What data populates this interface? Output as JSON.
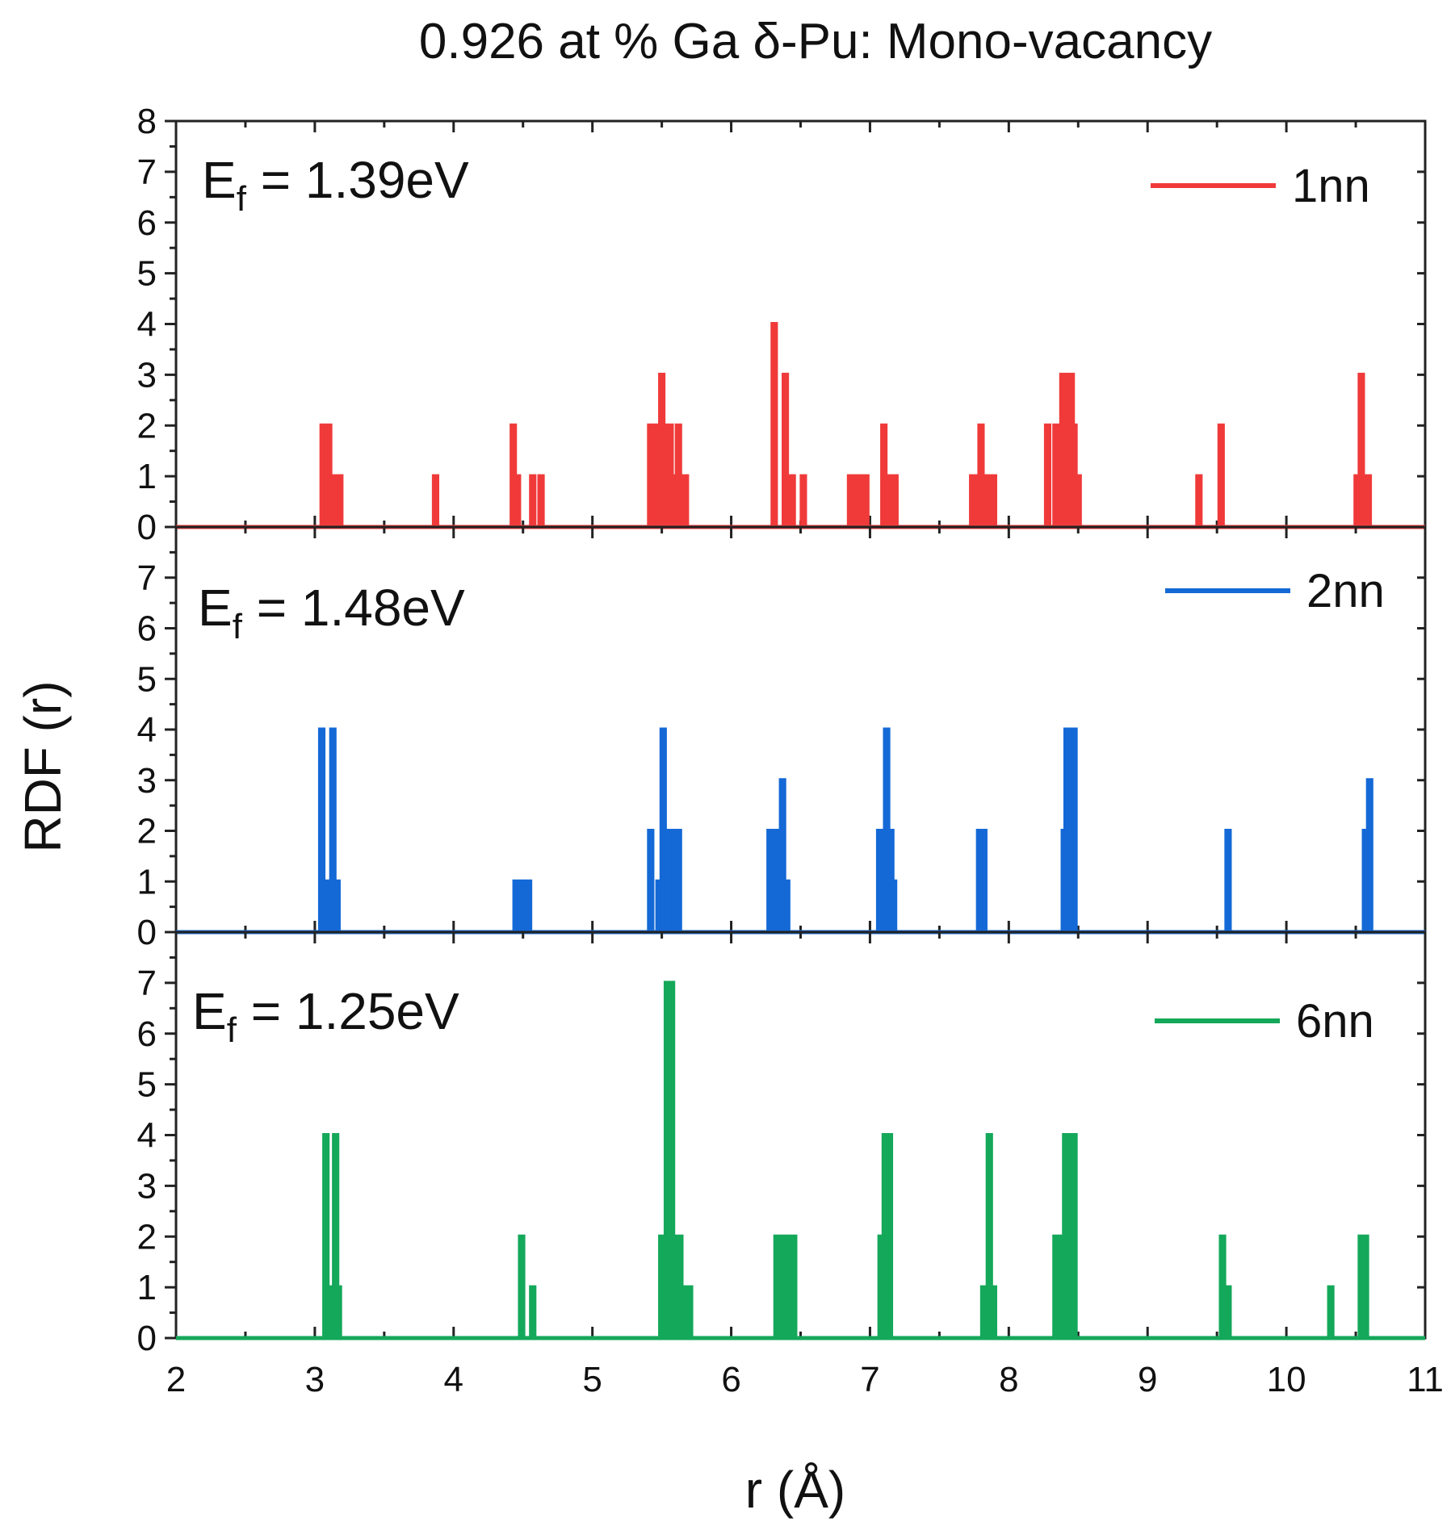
{
  "chart_data": {
    "type": "line",
    "title": "0.926 at % Ga δ-Pu: Mono-vacancy",
    "xlabel": "r (Å)",
    "ylabel": "RDF (r)",
    "xlim": [
      2,
      11
    ],
    "x_ticks": [
      2,
      3,
      4,
      5,
      6,
      7,
      8,
      9,
      10,
      11
    ],
    "panels": [
      {
        "name": "1nn",
        "color": "#f03a3a",
        "annotation": {
          "label": "E",
          "subscript": "f",
          "value": " = 1.39eV"
        },
        "ylim": [
          0,
          8
        ],
        "y_ticks": [
          0,
          1,
          2,
          3,
          4,
          5,
          6,
          7,
          8
        ],
        "peaks": [
          [
            3.06,
            2
          ],
          [
            3.08,
            2
          ],
          [
            3.1,
            2
          ],
          [
            3.13,
            1
          ],
          [
            3.16,
            1
          ],
          [
            3.18,
            1
          ],
          [
            3.87,
            1
          ],
          [
            4.43,
            2
          ],
          [
            4.46,
            1
          ],
          [
            4.57,
            1
          ],
          [
            4.63,
            1
          ],
          [
            5.42,
            2
          ],
          [
            5.46,
            2
          ],
          [
            5.5,
            3
          ],
          [
            5.53,
            2
          ],
          [
            5.56,
            2
          ],
          [
            5.59,
            1
          ],
          [
            5.62,
            2
          ],
          [
            5.65,
            1
          ],
          [
            5.67,
            1
          ],
          [
            6.31,
            4
          ],
          [
            6.39,
            3
          ],
          [
            6.44,
            1
          ],
          [
            6.52,
            1
          ],
          [
            6.86,
            1
          ],
          [
            6.89,
            1
          ],
          [
            6.94,
            1
          ],
          [
            6.97,
            1
          ],
          [
            7.1,
            2
          ],
          [
            7.13,
            1
          ],
          [
            7.16,
            1
          ],
          [
            7.18,
            1
          ],
          [
            7.74,
            1
          ],
          [
            7.77,
            1
          ],
          [
            7.8,
            2
          ],
          [
            7.83,
            1
          ],
          [
            7.86,
            1
          ],
          [
            7.89,
            1
          ],
          [
            8.28,
            2
          ],
          [
            8.34,
            2
          ],
          [
            8.37,
            2
          ],
          [
            8.39,
            3
          ],
          [
            8.42,
            3
          ],
          [
            8.45,
            3
          ],
          [
            8.47,
            2
          ],
          [
            8.5,
            1
          ],
          [
            9.37,
            1
          ],
          [
            9.53,
            2
          ],
          [
            10.51,
            1
          ],
          [
            10.54,
            3
          ],
          [
            10.57,
            1
          ],
          [
            10.59,
            1
          ]
        ]
      },
      {
        "name": "2nn",
        "color": "#1469d6",
        "annotation": {
          "label": "E",
          "subscript": "f",
          "value": " = 1.48eV"
        },
        "ylim": [
          0,
          8
        ],
        "y_ticks": [
          0,
          1,
          2,
          3,
          4,
          5,
          6,
          7
        ],
        "peaks": [
          [
            3.05,
            4
          ],
          [
            3.07,
            1
          ],
          [
            3.11,
            1
          ],
          [
            3.13,
            4
          ],
          [
            3.16,
            1
          ],
          [
            4.45,
            1
          ],
          [
            4.47,
            1
          ],
          [
            4.49,
            1
          ],
          [
            4.54,
            1
          ],
          [
            5.42,
            2
          ],
          [
            5.48,
            1
          ],
          [
            5.51,
            4
          ],
          [
            5.55,
            2
          ],
          [
            5.58,
            2
          ],
          [
            5.62,
            2
          ],
          [
            6.28,
            2
          ],
          [
            6.31,
            2
          ],
          [
            6.34,
            2
          ],
          [
            6.37,
            3
          ],
          [
            6.4,
            1
          ],
          [
            7.07,
            2
          ],
          [
            7.1,
            1
          ],
          [
            7.12,
            4
          ],
          [
            7.15,
            2
          ],
          [
            7.17,
            1
          ],
          [
            7.79,
            2
          ],
          [
            7.82,
            2
          ],
          [
            8.4,
            2
          ],
          [
            8.42,
            4
          ],
          [
            8.44,
            4
          ],
          [
            8.47,
            4
          ],
          [
            9.58,
            2
          ],
          [
            10.57,
            2
          ],
          [
            10.6,
            3
          ]
        ]
      },
      {
        "name": "6nn",
        "color": "#14a85a",
        "annotation": {
          "label": "E",
          "subscript": "f",
          "value": " = 1.25eV"
        },
        "ylim": [
          0,
          8
        ],
        "y_ticks": [
          0,
          1,
          2,
          3,
          4,
          5,
          6,
          7
        ],
        "peaks": [
          [
            3.08,
            4
          ],
          [
            3.11,
            1
          ],
          [
            3.15,
            4
          ],
          [
            3.17,
            1
          ],
          [
            4.49,
            2
          ],
          [
            4.57,
            1
          ],
          [
            5.5,
            2
          ],
          [
            5.54,
            7
          ],
          [
            5.57,
            7
          ],
          [
            5.6,
            2
          ],
          [
            5.63,
            2
          ],
          [
            5.66,
            1
          ],
          [
            5.7,
            1
          ],
          [
            6.33,
            2
          ],
          [
            6.36,
            2
          ],
          [
            6.39,
            2
          ],
          [
            6.42,
            2
          ],
          [
            6.45,
            2
          ],
          [
            7.08,
            2
          ],
          [
            7.11,
            4
          ],
          [
            7.14,
            4
          ],
          [
            7.82,
            1
          ],
          [
            7.86,
            4
          ],
          [
            7.89,
            1
          ],
          [
            8.34,
            2
          ],
          [
            8.38,
            2
          ],
          [
            8.41,
            4
          ],
          [
            8.44,
            4
          ],
          [
            8.47,
            4
          ],
          [
            9.54,
            2
          ],
          [
            9.58,
            1
          ],
          [
            10.32,
            1
          ],
          [
            10.54,
            2
          ],
          [
            10.57,
            2
          ]
        ]
      }
    ]
  }
}
